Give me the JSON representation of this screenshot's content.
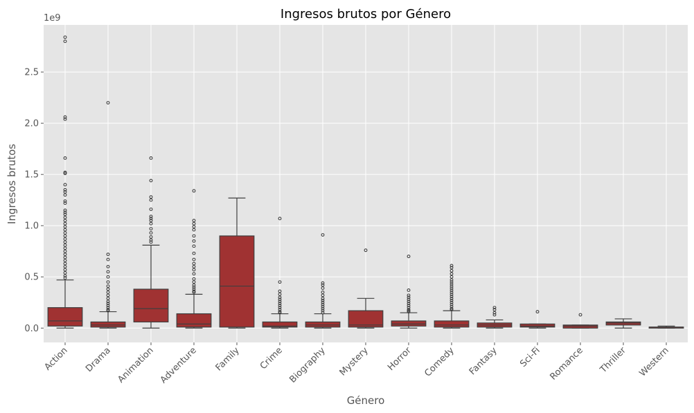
{
  "chart_data": {
    "type": "box",
    "title": "Ingresos brutos por Género",
    "xlabel": "Género",
    "ylabel": "Ingresos brutos",
    "y_offset_label": "1e9",
    "y_unit_multiplier": 1000000000,
    "ylim": [
      -0.14,
      2.96
    ],
    "yticks": [
      0.0,
      0.5,
      1.0,
      1.5,
      2.0,
      2.5
    ],
    "ytick_labels": [
      "0.0",
      "0.5",
      "1.0",
      "1.5",
      "2.0",
      "2.5"
    ],
    "grid": true,
    "style": "ggplot",
    "box_color": "#A03232",
    "categories": [
      "Action",
      "Drama",
      "Animation",
      "Adventure",
      "Family",
      "Crime",
      "Biography",
      "Mystery",
      "Horror",
      "Comedy",
      "Fantasy",
      "Sci-Fi",
      "Romance",
      "Thriller",
      "Western"
    ],
    "boxes": [
      {
        "category": "Action",
        "whisker_low": 0.0,
        "q1": 0.02,
        "median": 0.07,
        "q3": 0.2,
        "whisker_high": 0.47,
        "outliers": [
          2.84,
          2.8,
          2.06,
          2.04,
          1.66,
          1.52,
          1.51,
          1.4,
          1.35,
          1.33,
          1.3,
          1.24,
          1.22,
          1.15,
          1.13,
          1.11,
          1.08,
          1.05,
          1.02,
          0.99,
          0.96,
          0.93,
          0.9,
          0.87,
          0.84,
          0.81,
          0.78,
          0.75,
          0.72,
          0.69,
          0.66,
          0.63,
          0.6,
          0.57,
          0.54,
          0.51,
          0.49
        ]
      },
      {
        "category": "Drama",
        "whisker_low": 0.0,
        "q1": 0.01,
        "median": 0.03,
        "q3": 0.06,
        "whisker_high": 0.16,
        "outliers": [
          2.2,
          0.72,
          0.67,
          0.6,
          0.55,
          0.5,
          0.45,
          0.41,
          0.38,
          0.35,
          0.32,
          0.29,
          0.26,
          0.24,
          0.22,
          0.2,
          0.18,
          0.17
        ]
      },
      {
        "category": "Animation",
        "whisker_low": 0.0,
        "q1": 0.06,
        "median": 0.19,
        "q3": 0.38,
        "whisker_high": 0.81,
        "outliers": [
          1.66,
          1.44,
          1.28,
          1.25,
          1.16,
          1.09,
          1.07,
          1.05,
          1.02,
          0.97,
          0.93,
          0.89,
          0.86,
          0.84
        ]
      },
      {
        "category": "Adventure",
        "whisker_low": 0.0,
        "q1": 0.01,
        "median": 0.04,
        "q3": 0.14,
        "whisker_high": 0.33,
        "outliers": [
          1.34,
          1.05,
          1.02,
          0.99,
          0.96,
          0.9,
          0.85,
          0.8,
          0.73,
          0.67,
          0.63,
          0.6,
          0.57,
          0.53,
          0.48,
          0.45,
          0.42,
          0.4,
          0.38,
          0.36,
          0.35
        ]
      },
      {
        "category": "Family",
        "whisker_low": 0.0,
        "q1": 0.01,
        "median": 0.41,
        "q3": 0.9,
        "whisker_high": 1.27,
        "outliers": []
      },
      {
        "category": "Crime",
        "whisker_low": 0.0,
        "q1": 0.01,
        "median": 0.02,
        "q3": 0.06,
        "whisker_high": 0.14,
        "outliers": [
          1.07,
          0.45,
          0.36,
          0.33,
          0.3,
          0.28,
          0.26,
          0.24,
          0.22,
          0.2,
          0.18,
          0.16,
          0.15
        ]
      },
      {
        "category": "Biography",
        "whisker_low": 0.0,
        "q1": 0.01,
        "median": 0.03,
        "q3": 0.06,
        "whisker_high": 0.14,
        "outliers": [
          0.91,
          0.44,
          0.42,
          0.39,
          0.35,
          0.32,
          0.29,
          0.27,
          0.25,
          0.23,
          0.21,
          0.19,
          0.17,
          0.15
        ]
      },
      {
        "category": "Mystery",
        "whisker_low": 0.0,
        "q1": 0.01,
        "median": 0.03,
        "q3": 0.17,
        "whisker_high": 0.29,
        "outliers": [
          0.76
        ]
      },
      {
        "category": "Horror",
        "whisker_low": 0.0,
        "q1": 0.02,
        "median": 0.04,
        "q3": 0.07,
        "whisker_high": 0.15,
        "outliers": [
          0.7,
          0.37,
          0.32,
          0.3,
          0.28,
          0.26,
          0.24,
          0.22,
          0.2,
          0.18,
          0.17,
          0.16
        ]
      },
      {
        "category": "Comedy",
        "whisker_low": 0.0,
        "q1": 0.01,
        "median": 0.03,
        "q3": 0.07,
        "whisker_high": 0.17,
        "outliers": [
          0.61,
          0.59,
          0.56,
          0.53,
          0.5,
          0.47,
          0.45,
          0.43,
          0.41,
          0.39,
          0.37,
          0.35,
          0.33,
          0.31,
          0.29,
          0.27,
          0.25,
          0.23,
          0.21,
          0.19,
          0.18
        ]
      },
      {
        "category": "Fantasy",
        "whisker_low": 0.0,
        "q1": 0.01,
        "median": 0.03,
        "q3": 0.05,
        "whisker_high": 0.08,
        "outliers": [
          0.2,
          0.18,
          0.15,
          0.13
        ]
      },
      {
        "category": "Sci-Fi",
        "whisker_low": 0.0,
        "q1": 0.01,
        "median": 0.02,
        "q3": 0.04,
        "whisker_high": 0.04,
        "outliers": [
          0.16
        ]
      },
      {
        "category": "Romance",
        "whisker_low": 0.0,
        "q1": 0.0,
        "median": 0.02,
        "q3": 0.03,
        "whisker_high": 0.03,
        "outliers": [
          0.13
        ]
      },
      {
        "category": "Thriller",
        "whisker_low": 0.0,
        "q1": 0.03,
        "median": 0.05,
        "q3": 0.06,
        "whisker_high": 0.09,
        "outliers": []
      },
      {
        "category": "Western",
        "whisker_low": 0.0,
        "q1": 0.0,
        "median": 0.01,
        "q3": 0.01,
        "whisker_high": 0.02,
        "outliers": []
      }
    ]
  }
}
